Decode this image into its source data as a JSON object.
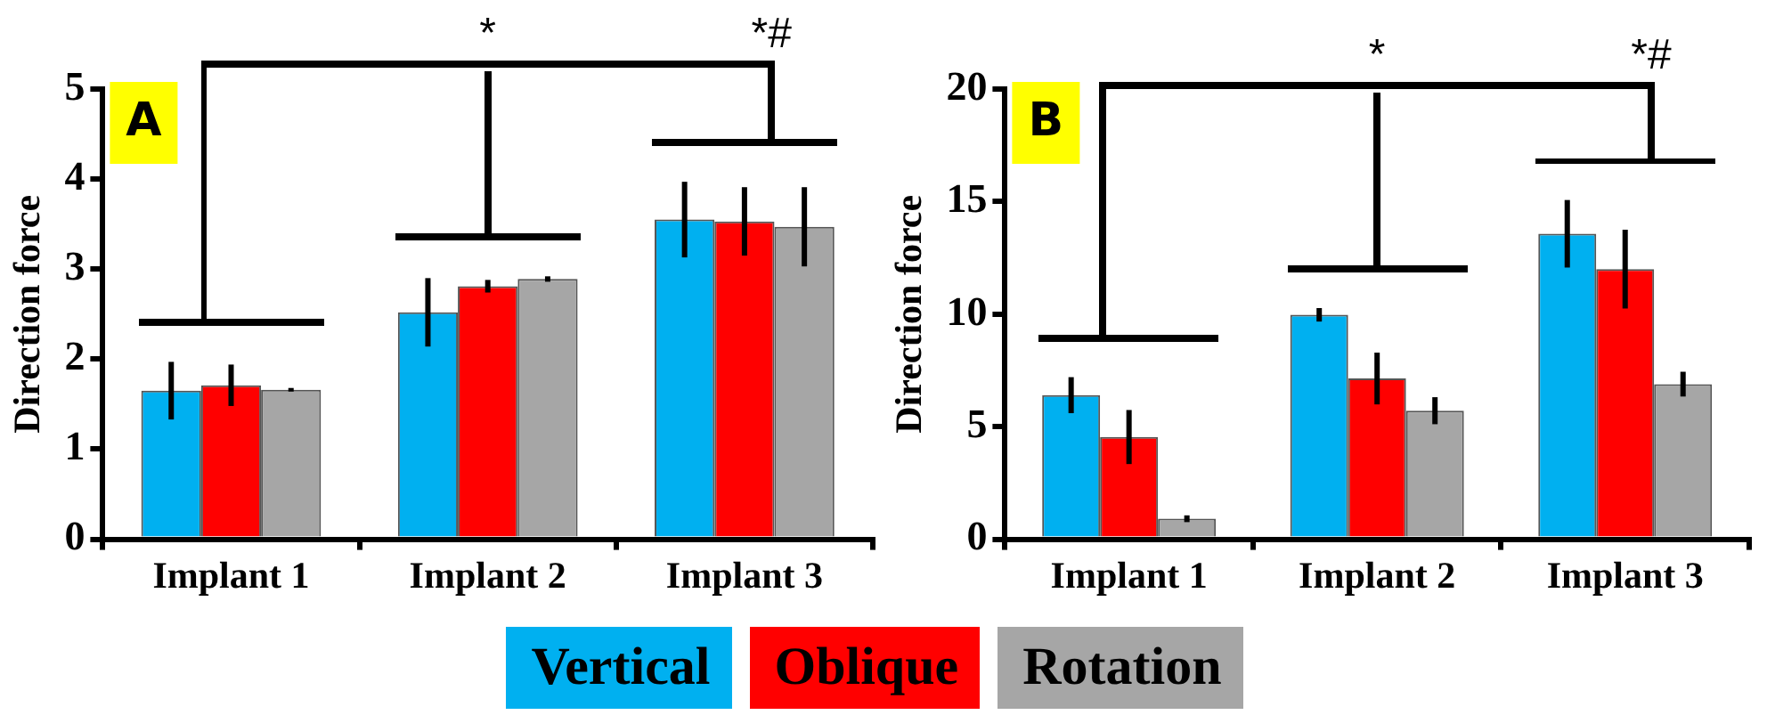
{
  "chart_data": [
    {
      "type": "bar",
      "categories": [
        "Implant 1",
        "Implant 2",
        "Implant 3"
      ],
      "ylabel": "Direction force",
      "ylim": [
        0,
        5
      ],
      "yticks": [
        0,
        1,
        2,
        3,
        4,
        5
      ],
      "legend": "bottom",
      "annotations": [
        "A",
        "*",
        "*#"
      ],
      "series": [
        {
          "name": "Vertical",
          "color": "#00b0f0",
          "values": [
            1.65,
            2.52,
            3.55
          ],
          "errors": [
            0.32,
            0.38,
            0.42
          ]
        },
        {
          "name": "Oblique",
          "color": "#ff0000",
          "values": [
            1.71,
            2.81,
            3.53
          ],
          "errors": [
            0.23,
            0.07,
            0.38
          ]
        },
        {
          "name": "Rotation",
          "color": "#a6a6a6",
          "values": [
            1.66,
            2.89,
            3.47
          ],
          "errors": [
            0.02,
            0.03,
            0.44
          ]
        }
      ]
    },
    {
      "type": "bar",
      "categories": [
        "Implant 1",
        "Implant 2",
        "Implant 3"
      ],
      "ylabel": "Direction force",
      "ylim": [
        0,
        20
      ],
      "yticks": [
        0,
        5,
        10,
        15,
        20
      ],
      "legend": "bottom",
      "annotations": [
        "B",
        "*",
        "*#"
      ],
      "series": [
        {
          "name": "Vertical",
          "color": "#00b0f0",
          "values": [
            6.4,
            9.97,
            13.57
          ],
          "errors": [
            0.8,
            0.3,
            1.5
          ]
        },
        {
          "name": "Oblique",
          "color": "#ff0000",
          "values": [
            4.54,
            7.14,
            12.0
          ],
          "errors": [
            1.2,
            1.15,
            1.75
          ]
        },
        {
          "name": "Rotation",
          "color": "#a6a6a6",
          "values": [
            0.91,
            5.71,
            6.89
          ],
          "errors": [
            0.15,
            0.6,
            0.55
          ]
        }
      ]
    }
  ]
}
